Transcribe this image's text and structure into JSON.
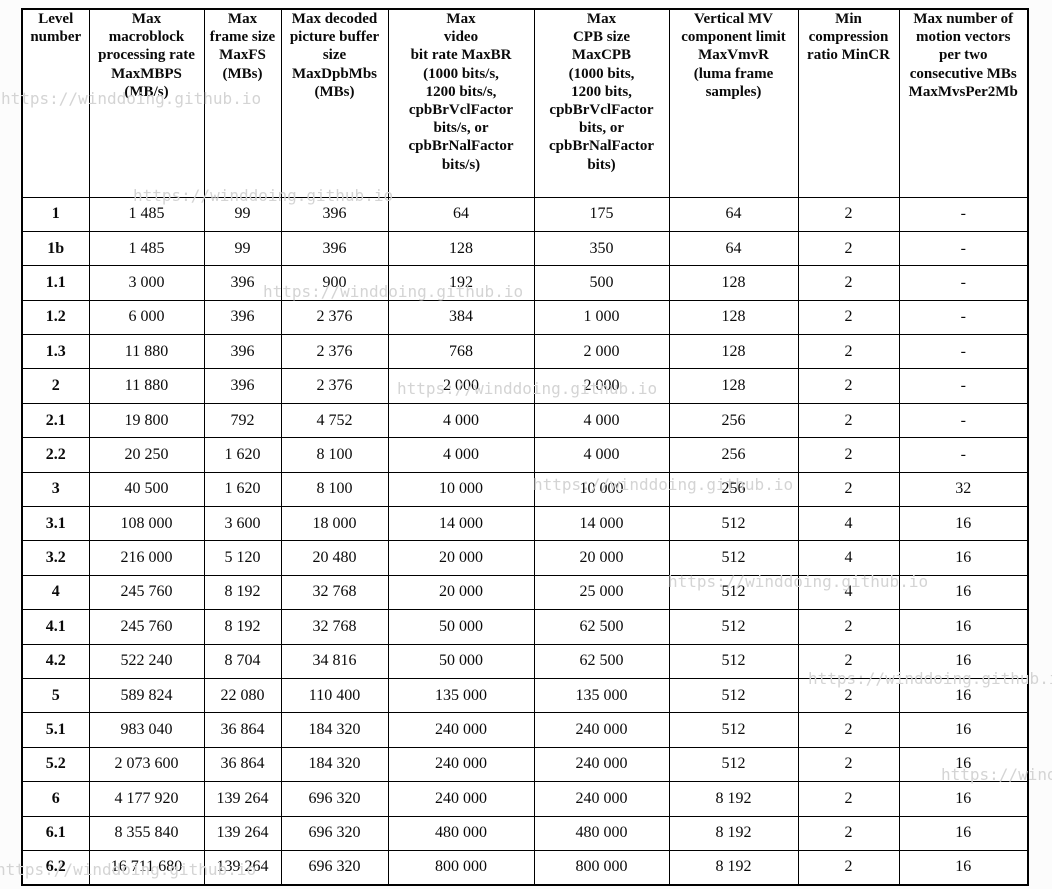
{
  "watermark": {
    "text": "https://winddoing.github.io",
    "color": "#d4d4d4"
  },
  "table": {
    "columns": [
      {
        "id": "level-number",
        "header_lines": [
          "Level",
          "number"
        ]
      },
      {
        "id": "max-mbps",
        "header_lines": [
          "Max",
          "macroblock",
          "processing rate",
          "MaxMBPS",
          "(MB/s)"
        ]
      },
      {
        "id": "max-fs",
        "header_lines": [
          "Max",
          "frame size",
          "MaxFS",
          "(MBs)"
        ]
      },
      {
        "id": "max-dpb-mbs",
        "header_lines": [
          "Max decoded",
          "picture buffer",
          "size",
          "MaxDpbMbs",
          "(MBs)"
        ]
      },
      {
        "id": "max-br",
        "header_lines": [
          "Max",
          "video",
          "bit rate MaxBR",
          "(1000 bits/s,",
          "1200 bits/s,",
          "cpbBrVclFactor",
          "bits/s, or",
          "cpbBrNalFactor",
          "bits/s)"
        ]
      },
      {
        "id": "max-cpb",
        "header_lines": [
          "Max",
          "CPB size",
          "MaxCPB",
          "(1000 bits,",
          "1200 bits,",
          "cpbBrVclFactor",
          "bits, or",
          "cpbBrNalFactor",
          "bits)"
        ]
      },
      {
        "id": "max-vmv-r",
        "header_lines": [
          "Vertical MV",
          "component limit",
          "MaxVmvR",
          "(luma frame",
          "samples)"
        ]
      },
      {
        "id": "min-cr",
        "header_lines": [
          "Min",
          "compression",
          "ratio MinCR"
        ]
      },
      {
        "id": "max-mvs-per-2mb",
        "header_lines": [
          "Max number of",
          "motion vectors",
          "per two",
          "consecutive MBs",
          "MaxMvsPer2Mb"
        ]
      }
    ],
    "rows": [
      {
        "level": "1",
        "cells": [
          "1 485",
          "99",
          "396",
          "64",
          "175",
          "64",
          "2",
          "-"
        ]
      },
      {
        "level": "1b",
        "cells": [
          "1 485",
          "99",
          "396",
          "128",
          "350",
          "64",
          "2",
          "-"
        ]
      },
      {
        "level": "1.1",
        "cells": [
          "3 000",
          "396",
          "900",
          "192",
          "500",
          "128",
          "2",
          "-"
        ]
      },
      {
        "level": "1.2",
        "cells": [
          "6 000",
          "396",
          "2 376",
          "384",
          "1 000",
          "128",
          "2",
          "-"
        ]
      },
      {
        "level": "1.3",
        "cells": [
          "11 880",
          "396",
          "2 376",
          "768",
          "2 000",
          "128",
          "2",
          "-"
        ]
      },
      {
        "level": "2",
        "cells": [
          "11 880",
          "396",
          "2 376",
          "2 000",
          "2 000",
          "128",
          "2",
          "-"
        ]
      },
      {
        "level": "2.1",
        "cells": [
          "19 800",
          "792",
          "4 752",
          "4 000",
          "4 000",
          "256",
          "2",
          "-"
        ]
      },
      {
        "level": "2.2",
        "cells": [
          "20 250",
          "1 620",
          "8 100",
          "4 000",
          "4 000",
          "256",
          "2",
          "-"
        ]
      },
      {
        "level": "3",
        "cells": [
          "40 500",
          "1 620",
          "8 100",
          "10 000",
          "10 000",
          "256",
          "2",
          "32"
        ]
      },
      {
        "level": "3.1",
        "cells": [
          "108 000",
          "3 600",
          "18 000",
          "14 000",
          "14 000",
          "512",
          "4",
          "16"
        ]
      },
      {
        "level": "3.2",
        "cells": [
          "216 000",
          "5 120",
          "20 480",
          "20 000",
          "20 000",
          "512",
          "4",
          "16"
        ]
      },
      {
        "level": "4",
        "cells": [
          "245 760",
          "8 192",
          "32 768",
          "20 000",
          "25 000",
          "512",
          "4",
          "16"
        ]
      },
      {
        "level": "4.1",
        "cells": [
          "245 760",
          "8 192",
          "32 768",
          "50 000",
          "62 500",
          "512",
          "2",
          "16"
        ]
      },
      {
        "level": "4.2",
        "cells": [
          "522 240",
          "8 704",
          "34 816",
          "50 000",
          "62 500",
          "512",
          "2",
          "16"
        ]
      },
      {
        "level": "5",
        "cells": [
          "589 824",
          "22 080",
          "110 400",
          "135 000",
          "135 000",
          "512",
          "2",
          "16"
        ]
      },
      {
        "level": "5.1",
        "cells": [
          "983 040",
          "36 864",
          "184 320",
          "240 000",
          "240 000",
          "512",
          "2",
          "16"
        ]
      },
      {
        "level": "5.2",
        "cells": [
          "2 073 600",
          "36 864",
          "184 320",
          "240 000",
          "240 000",
          "512",
          "2",
          "16"
        ]
      },
      {
        "level": "6",
        "cells": [
          "4 177 920",
          "139 264",
          "696 320",
          "240 000",
          "240 000",
          "8 192",
          "2",
          "16"
        ]
      },
      {
        "level": "6.1",
        "cells": [
          "8 355 840",
          "139 264",
          "696 320",
          "480 000",
          "480 000",
          "8 192",
          "2",
          "16"
        ]
      },
      {
        "level": "6.2",
        "cells": [
          "16 711 680",
          "139 264",
          "696 320",
          "800 000",
          "800 000",
          "8 192",
          "2",
          "16"
        ]
      }
    ]
  }
}
